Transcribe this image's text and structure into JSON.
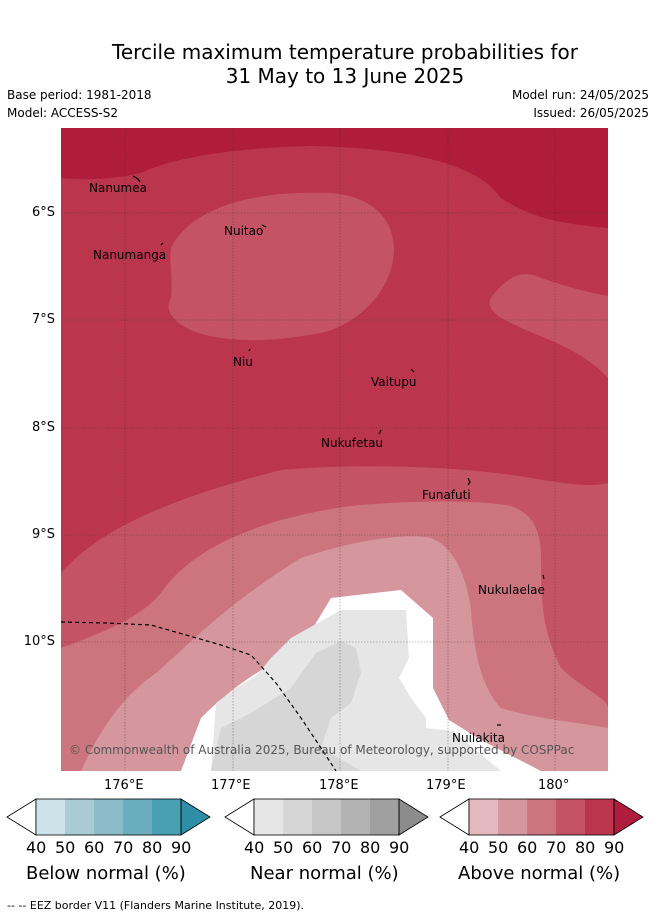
{
  "title": {
    "line1": "Tercile maximum temperature probabilities for",
    "line2": "31 May to 13 June 2025"
  },
  "meta": {
    "base_period": "Base period: 1981-2018",
    "model": "Model: ACCESS-S2",
    "model_run": "Model run: 24/05/2025",
    "issued": "Issued: 26/05/2025"
  },
  "axes": {
    "y_ticks": [
      "6°S",
      "7°S",
      "8°S",
      "9°S",
      "10°S"
    ],
    "x_ticks": [
      "176°E",
      "177°E",
      "178°E",
      "179°E",
      "180°"
    ]
  },
  "places": [
    {
      "name": "Nanumea"
    },
    {
      "name": "Nuitao"
    },
    {
      "name": "Nanumanga"
    },
    {
      "name": "Niu"
    },
    {
      "name": "Vaitupu"
    },
    {
      "name": "Nukufetau"
    },
    {
      "name": "Funafuti"
    },
    {
      "name": "Nukulaelae"
    },
    {
      "name": "Nuilakita"
    }
  ],
  "copyright": "© Commonwealth of Australia 2025, Bureau of Meteorology, supported by COSPPac",
  "colorbars": [
    {
      "title": "Below normal (%)",
      "ticks": [
        "40",
        "50",
        "60",
        "70",
        "80",
        "90"
      ],
      "colors": [
        "#ffffff",
        "#cde3ea",
        "#a9ccd4",
        "#8bbbc8",
        "#6aaebe",
        "#4aa0b3",
        "#2e8ea5"
      ]
    },
    {
      "title": "Near normal (%)",
      "ticks": [
        "40",
        "50",
        "60",
        "70",
        "80",
        "90"
      ],
      "colors": [
        "#ffffff",
        "#e6e6e6",
        "#d6d6d6",
        "#c6c6c6",
        "#b3b3b3",
        "#a0a0a0",
        "#8c8c8c"
      ]
    },
    {
      "title": "Above normal (%)",
      "ticks": [
        "40",
        "50",
        "60",
        "70",
        "80",
        "90"
      ],
      "colors": [
        "#ffffff",
        "#e3b9bf",
        "#d6969e",
        "#cc757f",
        "#c45465",
        "#bb364d",
        "#b01c3b"
      ]
    }
  ],
  "footer": "--  -- EEZ border V11 (Flanders Marine Institute, 2019)."
}
